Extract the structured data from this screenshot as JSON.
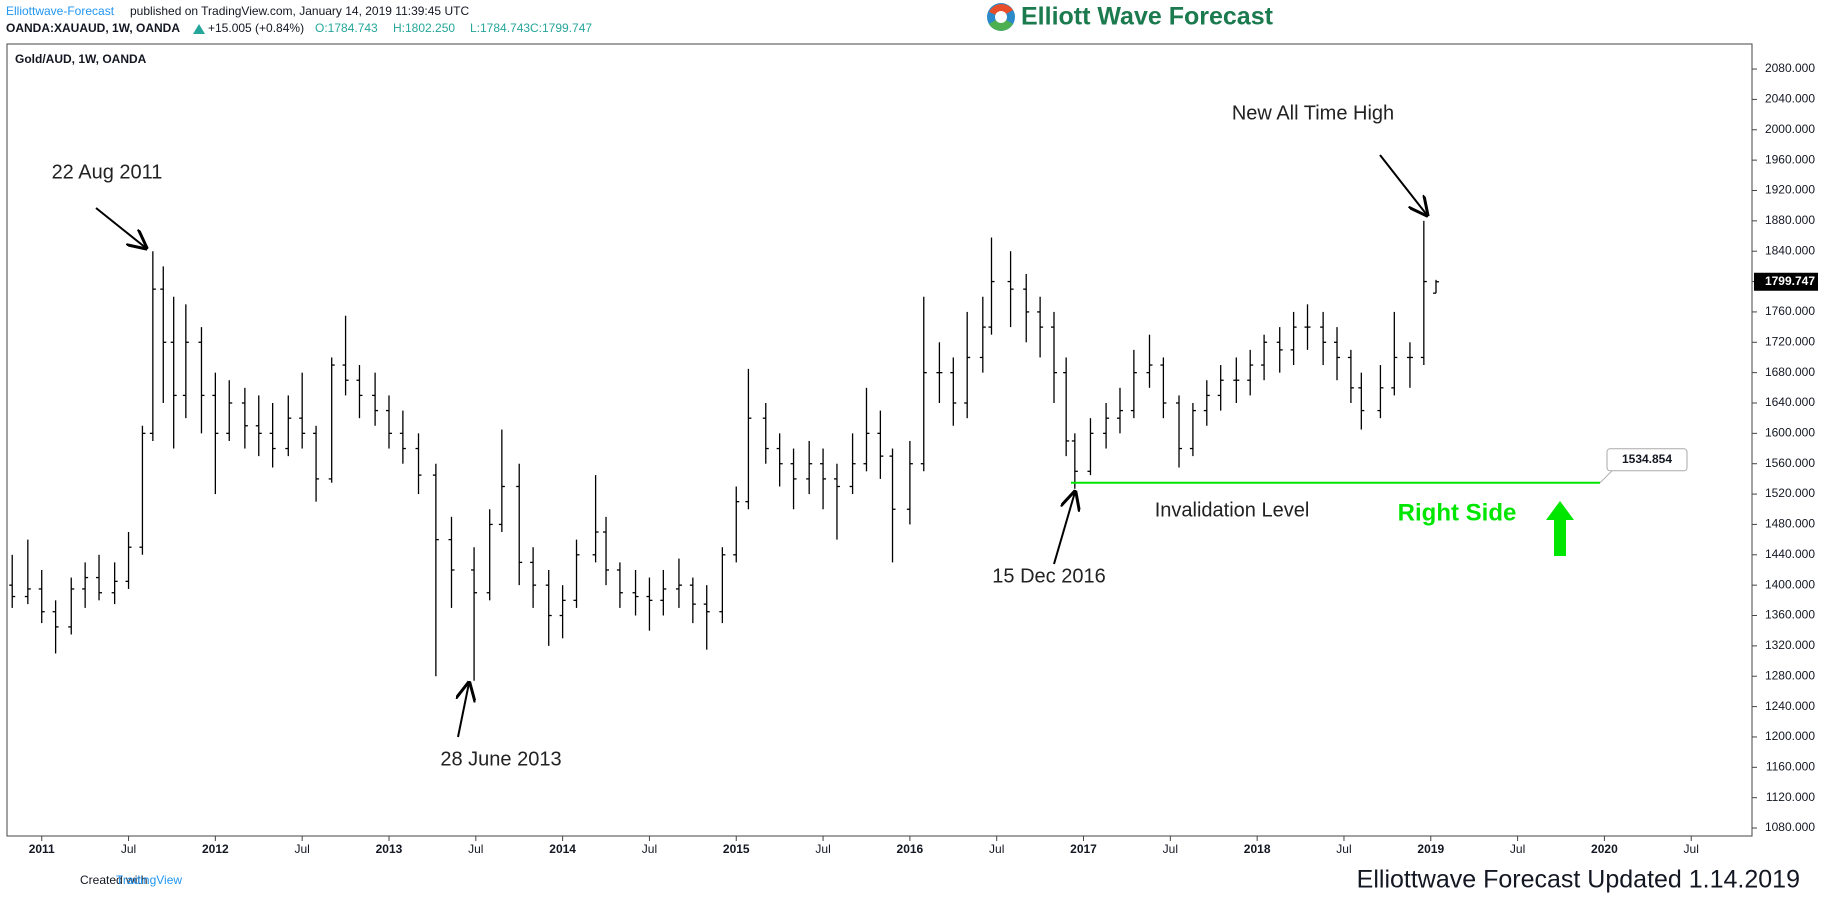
{
  "header": {
    "author": "Elliottwave-Forecast",
    "published": "published on TradingView.com, January 14, 2019 11:39:45 UTC",
    "symbol": "OANDA:XAUAUD, 1W, OANDA",
    "change": "+15.005 (+0.84%)",
    "open": "O:1784.743",
    "high": "H:1802.250",
    "low": "L:1784.743",
    "close": "C:1799.747"
  },
  "logo": "Elliott Wave Forecast",
  "footer": {
    "created": "Created with",
    "brand": "TradingView",
    "updated": "Elliottwave Forecast  Updated 1.14.2019"
  },
  "chart_data": {
    "type": "ohlc",
    "title": "Gold/AUD, 1W, OANDA",
    "color": "#000000",
    "x": [
      2010.83,
      2010.92,
      2011.0,
      2011.08,
      2011.17,
      2011.25,
      2011.33,
      2011.42,
      2011.5,
      2011.58,
      2011.64,
      2011.7,
      2011.76,
      2011.83,
      2011.92,
      2012.0,
      2012.08,
      2012.17,
      2012.25,
      2012.33,
      2012.42,
      2012.5,
      2012.58,
      2012.67,
      2012.75,
      2012.83,
      2012.92,
      2013.0,
      2013.08,
      2013.17,
      2013.27,
      2013.36,
      2013.49,
      2013.58,
      2013.65,
      2013.75,
      2013.83,
      2013.92,
      2014.0,
      2014.08,
      2014.19,
      2014.25,
      2014.33,
      2014.42,
      2014.5,
      2014.58,
      2014.67,
      2014.75,
      2014.83,
      2014.92,
      2015.0,
      2015.07,
      2015.17,
      2015.25,
      2015.33,
      2015.42,
      2015.5,
      2015.58,
      2015.67,
      2015.75,
      2015.83,
      2015.9,
      2016.0,
      2016.08,
      2016.17,
      2016.25,
      2016.33,
      2016.42,
      2016.47,
      2016.58,
      2016.67,
      2016.75,
      2016.83,
      2016.9,
      2016.95,
      2017.04,
      2017.13,
      2017.21,
      2017.29,
      2017.38,
      2017.46,
      2017.55,
      2017.63,
      2017.71,
      2017.79,
      2017.88,
      2017.96,
      2018.04,
      2018.13,
      2018.21,
      2018.29,
      2018.38,
      2018.46,
      2018.54,
      2018.6,
      2018.71,
      2018.79,
      2018.88,
      2018.96,
      2019.03
    ],
    "open": [
      1400,
      1385,
      1395,
      1365,
      1345,
      1395,
      1410,
      1390,
      1405,
      1450,
      1600,
      1790,
      1720,
      1650,
      1720,
      1650,
      1600,
      1640,
      1610,
      1600,
      1580,
      1620,
      1600,
      1540,
      1690,
      1670,
      1650,
      1630,
      1600,
      1580,
      1545,
      1460,
      1420,
      1390,
      1480,
      1530,
      1430,
      1400,
      1360,
      1380,
      1440,
      1470,
      1420,
      1390,
      1385,
      1380,
      1395,
      1400,
      1375,
      1365,
      1440,
      1510,
      1620,
      1580,
      1560,
      1540,
      1560,
      1540,
      1530,
      1560,
      1600,
      1570,
      1500,
      1560,
      1680,
      1680,
      1640,
      1700,
      1740,
      1800,
      1790,
      1760,
      1740,
      1680,
      1590,
      1550,
      1600,
      1620,
      1630,
      1680,
      1690,
      1640,
      1580,
      1630,
      1650,
      1670,
      1670,
      1690,
      1720,
      1710,
      1740,
      1740,
      1720,
      1700,
      1660,
      1630,
      1660,
      1700,
      1700,
      1784.743
    ],
    "high": [
      1440,
      1460,
      1420,
      1380,
      1410,
      1430,
      1440,
      1430,
      1470,
      1610,
      1840,
      1820,
      1780,
      1770,
      1740,
      1680,
      1670,
      1660,
      1650,
      1640,
      1650,
      1680,
      1610,
      1700,
      1755,
      1690,
      1680,
      1650,
      1630,
      1600,
      1560,
      1490,
      1450,
      1500,
      1605,
      1560,
      1450,
      1420,
      1400,
      1460,
      1545,
      1490,
      1430,
      1420,
      1410,
      1420,
      1435,
      1410,
      1400,
      1450,
      1530,
      1685,
      1640,
      1600,
      1580,
      1590,
      1580,
      1560,
      1600,
      1660,
      1630,
      1580,
      1590,
      1780,
      1720,
      1700,
      1760,
      1780,
      1858,
      1840,
      1810,
      1780,
      1760,
      1700,
      1600,
      1620,
      1640,
      1660,
      1710,
      1730,
      1700,
      1650,
      1640,
      1670,
      1690,
      1700,
      1710,
      1730,
      1740,
      1760,
      1770,
      1760,
      1740,
      1710,
      1680,
      1690,
      1760,
      1720,
      1880,
      1802.25
    ],
    "low": [
      1370,
      1375,
      1350,
      1310,
      1335,
      1370,
      1380,
      1375,
      1395,
      1440,
      1590,
      1640,
      1580,
      1620,
      1600,
      1520,
      1590,
      1580,
      1570,
      1555,
      1570,
      1580,
      1510,
      1535,
      1650,
      1620,
      1610,
      1580,
      1560,
      1520,
      1280,
      1370,
      1274,
      1380,
      1470,
      1400,
      1370,
      1320,
      1330,
      1370,
      1430,
      1400,
      1370,
      1360,
      1340,
      1360,
      1370,
      1350,
      1315,
      1350,
      1430,
      1500,
      1560,
      1530,
      1500,
      1520,
      1500,
      1460,
      1520,
      1550,
      1540,
      1430,
      1480,
      1550,
      1640,
      1610,
      1620,
      1680,
      1730,
      1740,
      1720,
      1700,
      1640,
      1570,
      1527,
      1545,
      1580,
      1600,
      1620,
      1660,
      1620,
      1555,
      1570,
      1610,
      1630,
      1640,
      1650,
      1670,
      1680,
      1690,
      1710,
      1690,
      1670,
      1640,
      1605,
      1620,
      1650,
      1660,
      1690,
      1784.743
    ],
    "close": [
      1385,
      1395,
      1365,
      1345,
      1395,
      1410,
      1390,
      1405,
      1450,
      1600,
      1790,
      1720,
      1650,
      1720,
      1650,
      1600,
      1640,
      1610,
      1600,
      1580,
      1620,
      1600,
      1540,
      1690,
      1670,
      1650,
      1630,
      1600,
      1580,
      1545,
      1460,
      1420,
      1390,
      1480,
      1530,
      1430,
      1400,
      1360,
      1380,
      1440,
      1470,
      1420,
      1390,
      1385,
      1380,
      1395,
      1400,
      1375,
      1365,
      1440,
      1510,
      1620,
      1580,
      1560,
      1540,
      1560,
      1540,
      1530,
      1560,
      1600,
      1570,
      1500,
      1560,
      1680,
      1680,
      1640,
      1700,
      1740,
      1800,
      1790,
      1760,
      1740,
      1680,
      1590,
      1550,
      1600,
      1620,
      1630,
      1680,
      1690,
      1640,
      1580,
      1630,
      1650,
      1670,
      1670,
      1690,
      1720,
      1710,
      1740,
      1740,
      1720,
      1700,
      1660,
      1630,
      1660,
      1700,
      1700,
      1800,
      1799.747
    ],
    "xlim": [
      2010.8,
      2020.85
    ],
    "ylim": [
      1069.5,
      2113
    ],
    "xticks": [
      2011,
      {
        "value": 2011.5,
        "label": "Jul"
      },
      2012,
      {
        "value": 2012.5,
        "label": "Jul"
      },
      2013,
      {
        "value": 2013.5,
        "label": "Jul"
      },
      2014,
      {
        "value": 2014.5,
        "label": "Jul"
      },
      2015,
      {
        "value": 2015.5,
        "label": "Jul"
      },
      2016,
      {
        "value": 2016.5,
        "label": "Jul"
      },
      2017,
      {
        "value": 2017.5,
        "label": "Jul"
      },
      2018,
      {
        "value": 2018.5,
        "label": "Jul"
      },
      2019,
      {
        "value": 2019.5,
        "label": "Jul"
      },
      2020,
      {
        "value": 2020.5,
        "label": "Jul"
      }
    ],
    "yticks": [
      {
        "value": 1080,
        "label": "1080.000"
      },
      {
        "value": 1120,
        "label": "1120.000"
      },
      {
        "value": 1160,
        "label": "1160.000"
      },
      {
        "value": 1200,
        "label": "1200.000"
      },
      {
        "value": 1240,
        "label": "1240.000"
      },
      {
        "value": 1280,
        "label": "1280.000"
      },
      {
        "value": 1320,
        "label": "1320.000"
      },
      {
        "value": 1360,
        "label": "1360.000"
      },
      {
        "value": 1400,
        "label": "1400.000"
      },
      {
        "value": 1440,
        "label": "1440.000"
      },
      {
        "value": 1480,
        "label": "1480.000"
      },
      {
        "value": 1520,
        "label": "1520.000"
      },
      {
        "value": 1560,
        "label": "1560.000"
      },
      {
        "value": 1600,
        "label": "1600.000"
      },
      {
        "value": 1640,
        "label": "1640.000"
      },
      {
        "value": 1680,
        "label": "1680.000"
      },
      {
        "value": 1720,
        "label": "1720.000"
      },
      {
        "value": 1760,
        "label": "1760.000"
      },
      {
        "value": 1800,
        "label": "1800.000"
      },
      {
        "value": 1840,
        "label": "1840.000"
      },
      {
        "value": 1880,
        "label": "1880.000"
      },
      {
        "value": 1920,
        "label": "1920.000"
      },
      {
        "value": 1960,
        "label": "1960.000"
      },
      {
        "value": 2000,
        "label": "2000.000"
      },
      {
        "value": 2040,
        "label": "2040.000"
      },
      {
        "value": 2080,
        "label": "2080.000"
      }
    ],
    "grid": false,
    "invalidation": {
      "value": 1534.854,
      "label": "Invalidation Level",
      "color": "#00e600"
    },
    "annotations": {
      "high_2011": "22 Aug 2011",
      "low_2013": "28 June 2013",
      "low_2016": "15 Dec 2016",
      "new_high": "New All Time High",
      "side": "Right Side"
    }
  }
}
